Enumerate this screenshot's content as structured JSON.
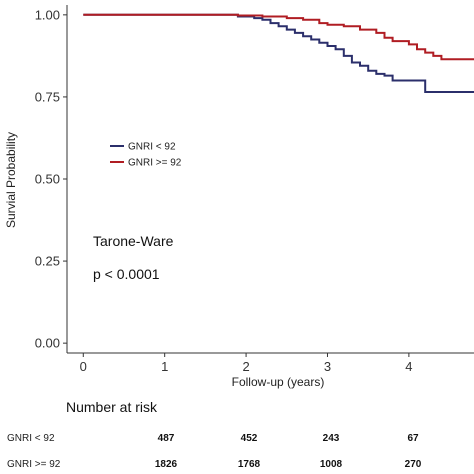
{
  "chart_data": {
    "type": "line",
    "style": "step",
    "xlabel": "Follow-up (years)",
    "ylabel": "Survial Probability",
    "xlim": [
      -0.2,
      4.8
    ],
    "ylim": [
      -0.03,
      1.03
    ],
    "x_ticks": [
      0,
      1,
      2,
      3,
      4
    ],
    "y_ticks": [
      0.0,
      0.25,
      0.5,
      0.75,
      1.0
    ],
    "x_tick_labels": [
      "0",
      "1",
      "2",
      "3",
      "4"
    ],
    "y_tick_labels": [
      "0.00",
      "0.25",
      "0.50",
      "0.75",
      "1.00"
    ],
    "grid": false,
    "legend_position": "left-upper",
    "series": [
      {
        "name": "GNRI < 92",
        "color": "#2b2f6b",
        "x": [
          0,
          1.9,
          2.1,
          2.2,
          2.3,
          2.4,
          2.5,
          2.6,
          2.7,
          2.8,
          2.9,
          3.0,
          3.1,
          3.2,
          3.3,
          3.4,
          3.5,
          3.6,
          3.7,
          3.8,
          4.0,
          4.2,
          4.8
        ],
        "y": [
          1.0,
          0.995,
          0.99,
          0.985,
          0.975,
          0.965,
          0.955,
          0.945,
          0.935,
          0.925,
          0.915,
          0.905,
          0.895,
          0.875,
          0.855,
          0.845,
          0.83,
          0.82,
          0.815,
          0.8,
          0.8,
          0.765,
          0.765
        ]
      },
      {
        "name": "GNRI >= 92",
        "color": "#b01d23",
        "x": [
          0,
          1.9,
          2.2,
          2.5,
          2.7,
          2.9,
          3.0,
          3.2,
          3.4,
          3.6,
          3.7,
          3.8,
          4.0,
          4.1,
          4.2,
          4.3,
          4.4,
          4.8
        ],
        "y": [
          1.0,
          0.998,
          0.995,
          0.99,
          0.985,
          0.975,
          0.97,
          0.965,
          0.955,
          0.945,
          0.93,
          0.92,
          0.91,
          0.895,
          0.885,
          0.875,
          0.865,
          0.865
        ]
      }
    ],
    "annotations": [
      "Tarone-Ware",
      "p < 0.0001"
    ],
    "risk_table": {
      "title": "Number at risk",
      "times": [
        1,
        2,
        3,
        4
      ],
      "rows": [
        {
          "group": "GNRI < 92",
          "values": [
            "487",
            "452",
            "243",
            "67"
          ]
        },
        {
          "group": "GNRI >= 92",
          "values": [
            "1826",
            "1768",
            "1008",
            "270"
          ]
        }
      ]
    }
  }
}
